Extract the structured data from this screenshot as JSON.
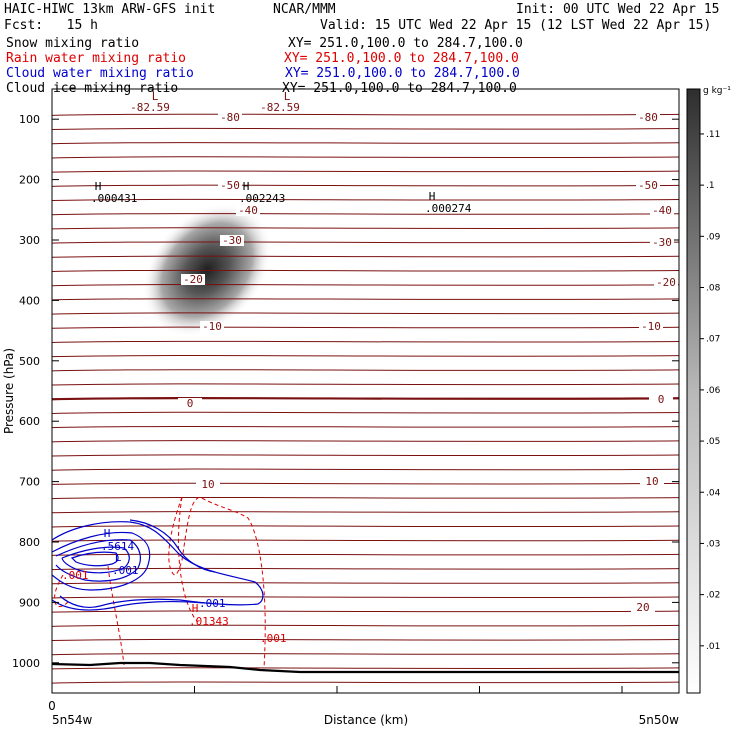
{
  "header": {
    "title_left": "HAIC-HIWC 13km ARW-GFS init",
    "org": "NCAR/MMM",
    "init": "Init: 00 UTC Wed 22 Apr 15",
    "fcst": "Fcst:   15 h",
    "valid": "Valid: 15 UTC Wed 22 Apr 15 (12 LST Wed 22 Apr 15)"
  },
  "fields": [
    {
      "name": "Snow mixing ratio",
      "xy": "XY= 251.0,100.0 to 284.7,100.0",
      "color": "#000000"
    },
    {
      "name": "Rain water mixing ratio",
      "xy": "XY= 251.0,100.0 to 284.7,100.0",
      "color": "#dd0000"
    },
    {
      "name": "Cloud water mixing ratio",
      "xy": "XY= 251.0,100.0 to 284.7,100.0",
      "color": "#0000cc"
    },
    {
      "name": "Cloud ice mixing ratio",
      "xy": "XY= 251.0,100.0 to 284.7,100.0",
      "color": "#000000"
    }
  ],
  "chart_data": {
    "type": "cross-section",
    "ylabel": "Pressure (hPa)",
    "xlabel": "Distance (km)",
    "x_start_tick": "0",
    "x_left_label": "5n54w",
    "x_right_label": "5n50w",
    "ylim": [
      1050,
      50
    ],
    "yticks": [
      100,
      200,
      300,
      400,
      500,
      600,
      700,
      800,
      900,
      1000
    ],
    "colorbar": {
      "units": "g kg⁻¹",
      "ticks": [
        ".01",
        ".02",
        ".03",
        ".04",
        ".05",
        ".06",
        ".07",
        ".08",
        ".09",
        ".1",
        ".11"
      ],
      "values": [
        0.01,
        0.02,
        0.03,
        0.04,
        0.05,
        0.06,
        0.07,
        0.08,
        0.09,
        0.1,
        0.11
      ],
      "max": 0.118
    },
    "temperature_contour_labels": [
      "-82.59",
      "-82.59",
      "-80",
      "-80",
      "-50",
      "-50",
      "-40",
      "-40",
      "-30",
      "-30",
      "-20",
      "-20",
      "-10",
      "-10",
      "0",
      "0",
      "10",
      "10",
      "20"
    ],
    "extrema": [
      {
        "mark": "L",
        "value": "-82.59",
        "field": "temperature"
      },
      {
        "mark": "L",
        "value": "-82.59",
        "field": "temperature"
      },
      {
        "mark": "H",
        "value": ".000431",
        "field": "ice"
      },
      {
        "mark": "H",
        "value": ".002243",
        "field": "ice"
      },
      {
        "mark": "H",
        "value": ".000274",
        "field": "ice"
      },
      {
        "mark": "H",
        "value": ".5614",
        "field": "cloud_water"
      },
      {
        "mark": "L",
        "value": ".001",
        "field": "cloud_water"
      },
      {
        "mark": "H",
        "value": ".01343",
        "field": "rain"
      }
    ],
    "cloud_water_labels": [
      ".001"
    ],
    "rain_labels": [
      ".001",
      ".001"
    ],
    "snow_max_estimate": 0.118,
    "snow_max_pressure": 360
  }
}
